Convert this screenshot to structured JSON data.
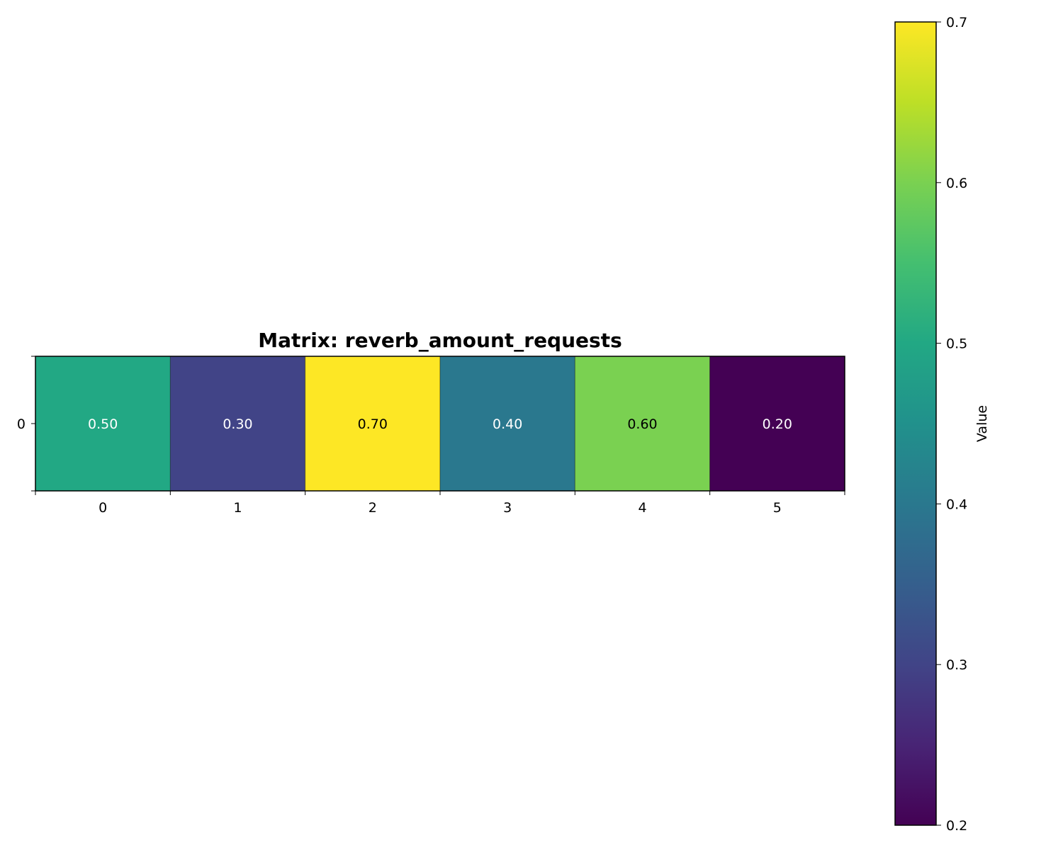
{
  "chart_data": {
    "type": "heatmap",
    "title": "Matrix: reverb_amount_requests",
    "rows": [
      "0"
    ],
    "columns": [
      "0",
      "1",
      "2",
      "3",
      "4",
      "5"
    ],
    "values": [
      [
        0.5,
        0.3,
        0.7,
        0.4,
        0.6,
        0.2
      ]
    ],
    "value_labels": [
      [
        "0.50",
        "0.30",
        "0.70",
        "0.40",
        "0.60",
        "0.20"
      ]
    ],
    "colormap": "viridis",
    "colorbar": {
      "label": "Value",
      "range": [
        0.2,
        0.7
      ],
      "ticks": [
        "0.2",
        "0.3",
        "0.4",
        "0.5",
        "0.6",
        "0.7"
      ]
    },
    "grid": false
  }
}
